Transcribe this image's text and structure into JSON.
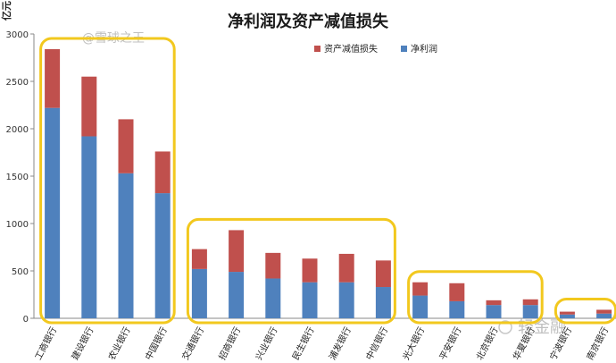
{
  "chart_data": {
    "type": "bar",
    "stacked": true,
    "title": "净利润及资产减值损失",
    "ylabel": "亿元",
    "xlabel": "",
    "ylim": [
      0,
      3000
    ],
    "yticks": [
      0,
      500,
      1000,
      1500,
      2000,
      2500,
      3000
    ],
    "grid": false,
    "legend_position": "top-right",
    "categories": [
      "工商银行",
      "建设银行",
      "农业银行",
      "中国银行",
      "交通银行",
      "招商银行",
      "兴业银行",
      "民生银行",
      "浦发银行",
      "中信银行",
      "光大银行",
      "平安银行",
      "北京银行",
      "华夏银行",
      "宁波银行",
      "南京银行"
    ],
    "series": [
      {
        "name": "净利润",
        "color": "#4f81bd",
        "values": [
          2220,
          1920,
          1530,
          1320,
          520,
          490,
          420,
          380,
          380,
          330,
          240,
          180,
          140,
          140,
          40,
          50
        ]
      },
      {
        "name": "资产减值损失",
        "color": "#c0504d",
        "values": [
          620,
          630,
          570,
          440,
          210,
          440,
          270,
          250,
          300,
          280,
          140,
          190,
          50,
          60,
          30,
          40
        ]
      }
    ],
    "highlight_groups": [
      {
        "from": 0,
        "to": 3
      },
      {
        "from": 4,
        "to": 9
      },
      {
        "from": 10,
        "to": 13
      },
      {
        "from": 14,
        "to": 15
      }
    ],
    "highlight_color": "#f2c81e"
  },
  "watermarks": {
    "top": "@雪球之王",
    "bottom": "轻金融"
  }
}
